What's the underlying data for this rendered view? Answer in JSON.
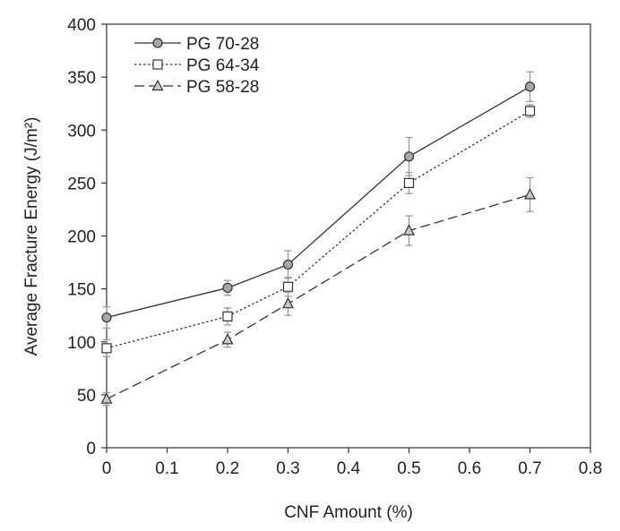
{
  "chart_data": {
    "type": "line",
    "title": "",
    "xlabel": "CNF Amount  (%)",
    "ylabel": "Average Fracture Energy (J/m²)",
    "xlim": [
      0,
      0.8
    ],
    "ylim": [
      0,
      400
    ],
    "x_ticks": [
      0,
      0.1,
      0.2,
      0.3,
      0.4,
      0.5,
      0.6,
      0.7,
      0.8
    ],
    "x_tick_labels": [
      "0",
      "0.1",
      "0.2",
      "0.3",
      "0.4",
      "0.5",
      "0.6",
      "0.7",
      "0.8"
    ],
    "y_ticks": [
      0,
      50,
      100,
      150,
      200,
      250,
      300,
      350,
      400
    ],
    "y_tick_labels": [
      "0",
      "50",
      "100",
      "150",
      "200",
      "250",
      "300",
      "350",
      "400"
    ],
    "grid": false,
    "legend_position": "top-left",
    "series": [
      {
        "name": "PG 70-28",
        "marker": "circle",
        "line_style": "solid",
        "color": "#333333",
        "marker_fill": "#a6a6a6",
        "x": [
          0,
          0.2,
          0.3,
          0.5,
          0.7
        ],
        "y": [
          123,
          151,
          173,
          275,
          341
        ],
        "error": [
          10,
          7,
          13,
          18,
          14
        ]
      },
      {
        "name": "PG 64-34",
        "marker": "square",
        "line_style": "dotted",
        "color": "#333333",
        "marker_fill": "#ffffff",
        "x": [
          0,
          0.2,
          0.3,
          0.5,
          0.7
        ],
        "y": [
          94,
          124,
          152,
          250,
          318
        ],
        "error": [
          8,
          8,
          9,
          10,
          6
        ]
      },
      {
        "name": "PG 58-28",
        "marker": "triangle",
        "line_style": "dashed",
        "color": "#333333",
        "marker_fill": "#c8c8c8",
        "x": [
          0,
          0.2,
          0.3,
          0.5,
          0.7
        ],
        "y": [
          46,
          102,
          136,
          205,
          239
        ],
        "error": [
          6,
          7,
          11,
          14,
          16
        ]
      }
    ]
  }
}
